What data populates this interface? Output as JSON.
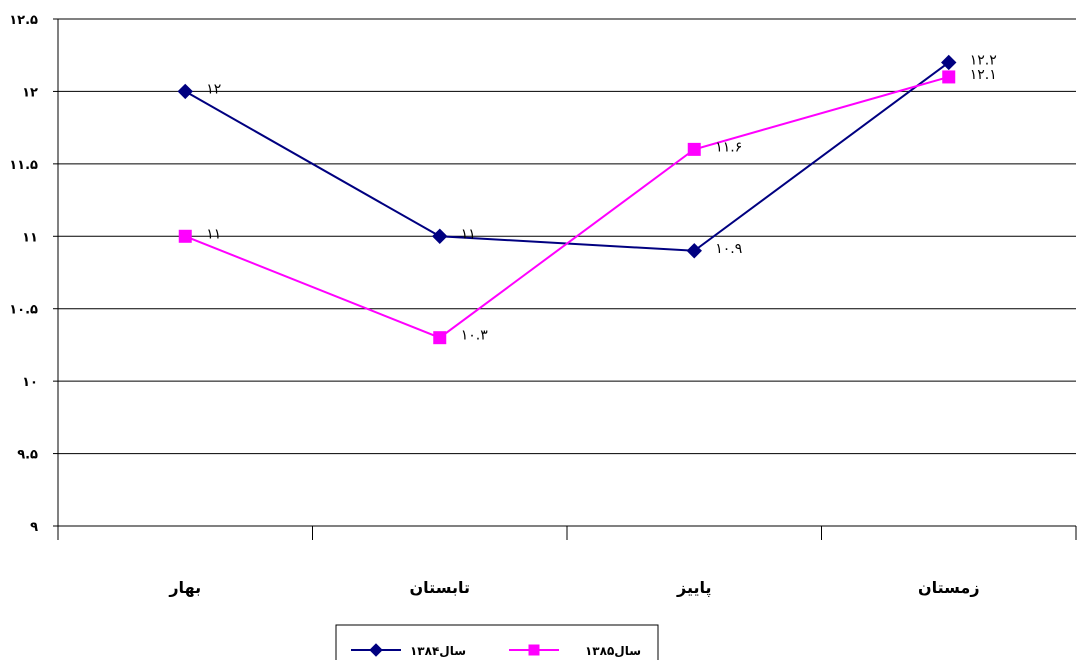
{
  "chart_data": {
    "type": "line",
    "title": "",
    "xlabel": "",
    "ylabel": "",
    "categories": [
      "بهار",
      "تابستان",
      "پاییز",
      "زمستان"
    ],
    "ylim": [
      9,
      12.5
    ],
    "ytick_values": [
      9,
      9.5,
      10,
      10.5,
      11,
      11.5,
      12,
      12.5
    ],
    "ytick_labels": [
      "۹",
      "۹.۵",
      "۱۰",
      "۱۰.۵",
      "۱۱",
      "۱۱.۵",
      "۱۲",
      "۱۲.۵"
    ],
    "grid": true,
    "legend_position": "bottom",
    "series": [
      {
        "name": "سال۱۳۸۴",
        "values": [
          12,
          11,
          10.9,
          12.2
        ],
        "labels": [
          "۱۲",
          "۱۱",
          "۱۰.۹",
          "۱۲.۲"
        ],
        "color": "#000080",
        "marker": "diamond"
      },
      {
        "name": "سال۱۳۸۵",
        "values": [
          11,
          10.3,
          11.6,
          12.1
        ],
        "labels": [
          "۱۱",
          "۱۰.۳",
          "۱۱.۶",
          "۱۲.۱"
        ],
        "color": "#FF00FF",
        "marker": "square"
      }
    ]
  }
}
